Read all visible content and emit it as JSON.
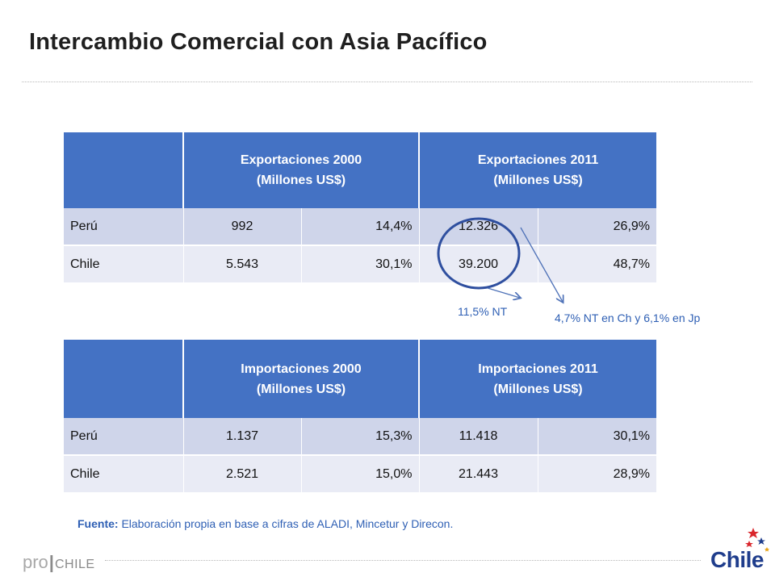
{
  "title": "Intercambio Comercial con Asia Pacífico",
  "exports_table": {
    "header_col1": [
      "Exportaciones 2000",
      "(Millones US$)"
    ],
    "header_col2": [
      "Exportaciones 2011",
      "(Millones US$)"
    ],
    "rows": [
      {
        "country": "Perú",
        "v2000": "992",
        "p2000": "14,4%",
        "v2011": "12.326",
        "p2011": "26,9%"
      },
      {
        "country": "Chile",
        "v2000": "5.543",
        "p2000": "30,1%",
        "v2011": "39.200",
        "p2011": "48,7%"
      }
    ]
  },
  "imports_table": {
    "header_col1": [
      "Importaciones 2000",
      "(Millones US$)"
    ],
    "header_col2": [
      "Importaciones 2011",
      "(Millones US$)"
    ],
    "rows": [
      {
        "country": "Perú",
        "v2000": "1.137",
        "p2000": "15,3%",
        "v2011": "11.418",
        "p2011": "30,1%"
      },
      {
        "country": "Chile",
        "v2000": "2.521",
        "p2000": "15,0%",
        "v2011": "21.443",
        "p2011": "28,9%"
      }
    ]
  },
  "annotations": {
    "nt_export": "11,5% NT",
    "nt_detail": "4,7% NT en Ch y 6,1% en Jp"
  },
  "source": {
    "label": "Fuente:",
    "text": " Elaboración propia en base a cifras de ALADI,  Mincetur y Direcon."
  },
  "footer": {
    "prochile_pro": "pro",
    "prochile_bar": "|",
    "prochile_chile": "CHILE",
    "chile_brand": "Chile"
  },
  "colors": {
    "header_blue": "#4472c4",
    "row_dark": "#cfd5ea",
    "row_light": "#e9ebf5",
    "annotation_blue": "#2e5fb4",
    "circle_stroke": "#2f4f9f"
  }
}
